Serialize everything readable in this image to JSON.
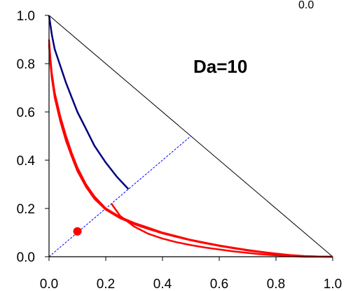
{
  "chart_data": {
    "type": "line",
    "title": "",
    "xlabel": "",
    "ylabel": "",
    "xlim": [
      0,
      1
    ],
    "ylim": [
      0,
      1
    ],
    "x_ticks": [
      "0.0",
      "0.2",
      "0.4",
      "0.6",
      "0.8",
      "1.0"
    ],
    "y_ticks": [
      "0.0",
      "0.2",
      "0.4",
      "0.6",
      "0.8",
      "1.0"
    ],
    "annotation": "Da=10",
    "corner_label": "0.0",
    "grid": false,
    "legend": "none",
    "colors": {
      "diagonal": "#000000",
      "blue_curve": "#000080",
      "red_curves": "#ff0000",
      "dashed_line": "#0000ff",
      "axes": "#000000"
    },
    "series": [
      {
        "color": "#000000",
        "style": "solid-thin",
        "x": [
          0.0,
          1.0
        ],
        "y": [
          1.0,
          0.0
        ]
      },
      {
        "color": "#0000ff",
        "style": "dashed",
        "x": [
          0.0,
          0.5
        ],
        "y": [
          0.0,
          0.5
        ]
      },
      {
        "color": "#000080",
        "style": "solid",
        "x": [
          0.0,
          0.01,
          0.02,
          0.04,
          0.06,
          0.08,
          0.1,
          0.13,
          0.16,
          0.2,
          0.24,
          0.28
        ],
        "y": [
          1.0,
          0.92,
          0.86,
          0.79,
          0.72,
          0.66,
          0.6,
          0.53,
          0.46,
          0.39,
          0.33,
          0.28
        ]
      },
      {
        "color": "#ff0000",
        "style": "solid",
        "x": [
          0.0,
          0.005,
          0.01,
          0.02,
          0.04,
          0.06,
          0.08,
          0.1,
          0.13,
          0.16,
          0.2,
          0.25,
          0.3,
          0.35,
          0.4,
          0.45,
          0.5,
          0.55,
          0.6,
          0.65,
          0.7,
          0.75,
          0.8,
          0.85,
          0.9,
          0.95,
          1.0
        ],
        "y": [
          0.9,
          0.82,
          0.76,
          0.68,
          0.58,
          0.5,
          0.43,
          0.37,
          0.3,
          0.25,
          0.2,
          0.165,
          0.14,
          0.12,
          0.1,
          0.085,
          0.07,
          0.058,
          0.047,
          0.037,
          0.028,
          0.02,
          0.013,
          0.007,
          0.003,
          0.001,
          0.0
        ]
      },
      {
        "color": "#ff0000",
        "style": "solid",
        "x": [
          0.0,
          0.005,
          0.01,
          0.02,
          0.04,
          0.06,
          0.08,
          0.1,
          0.13,
          0.16,
          0.2,
          0.25,
          0.3,
          0.35,
          0.4,
          0.45,
          0.5,
          0.55,
          0.6,
          0.65,
          0.7,
          0.75,
          0.8,
          0.85,
          0.9,
          0.95,
          1.0
        ],
        "y": [
          0.88,
          0.8,
          0.74,
          0.66,
          0.56,
          0.48,
          0.415,
          0.355,
          0.29,
          0.24,
          0.195,
          0.16,
          0.135,
          0.115,
          0.097,
          0.082,
          0.068,
          0.056,
          0.045,
          0.035,
          0.026,
          0.018,
          0.011,
          0.006,
          0.002,
          0.0005,
          0.0
        ]
      },
      {
        "color": "#ff0000",
        "style": "solid",
        "x": [
          0.22,
          0.25,
          0.3,
          0.35,
          0.4,
          0.45,
          0.5,
          0.55,
          0.6,
          0.65,
          0.7,
          0.75,
          0.8,
          0.85,
          0.9,
          0.95,
          1.0
        ],
        "y": [
          0.22,
          0.17,
          0.125,
          0.095,
          0.075,
          0.06,
          0.048,
          0.038,
          0.03,
          0.022,
          0.016,
          0.01,
          0.006,
          0.003,
          0.0,
          0.0,
          0.0
        ]
      }
    ],
    "points": [
      {
        "x": 0.1,
        "y": 0.105,
        "color": "#ff0000"
      }
    ]
  }
}
